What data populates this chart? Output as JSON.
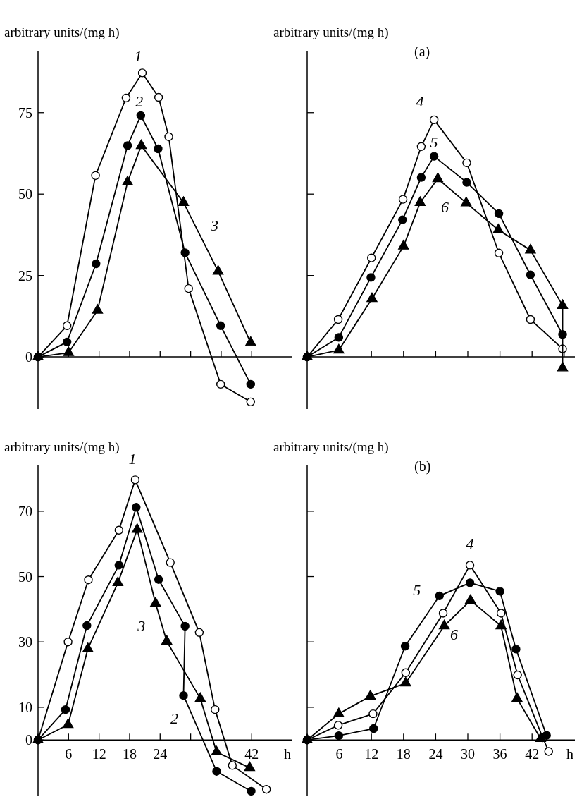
{
  "chart_data": [
    {
      "type": "line",
      "ylabel": "arbitrary units/(mg h)",
      "xlim": [
        0,
        50
      ],
      "ylim": [
        -16,
        94
      ],
      "xticks": [
        {
          "value": 6,
          "label": null
        },
        {
          "value": 12,
          "label": null
        },
        {
          "value": 18,
          "label": null
        },
        {
          "value": 24,
          "label": null
        },
        {
          "value": 30,
          "label": null
        },
        {
          "value": 36,
          "label": null
        },
        {
          "value": 42,
          "label": null
        }
      ],
      "yticks": [
        0,
        25,
        50,
        75
      ],
      "tick_labels": "y",
      "series": [
        {
          "name": "1",
          "color": "#000000",
          "marker": "circle",
          "colors": [
            "#ffffff",
            "#ffffff",
            "#ffffff",
            "#ffffff",
            "#ffffff",
            "#ffffff",
            "#ffffff",
            "#ffffff",
            "#ffffff",
            "#ffffff"
          ],
          "x": [
            0,
            5.7,
            11.3,
            17.3,
            20.5,
            23.7,
            25.7,
            29.6,
            35.9,
            41.8
          ],
          "values": [
            0,
            9.6,
            55.7,
            79.5,
            87.2,
            79.7,
            67.6,
            21,
            -8.4,
            -13.8
          ]
        },
        {
          "name": "2",
          "color": "#000000",
          "marker": "circle",
          "x": [
            0,
            5.7,
            11.4,
            17.6,
            20.2,
            23.6,
            28.9,
            35.9,
            41.8
          ],
          "values": [
            0,
            4.6,
            28.6,
            64.9,
            74.1,
            63.9,
            32,
            9.6,
            -8.4
          ]
        },
        {
          "name": "3",
          "color": "#000000",
          "marker": "triangle",
          "x": [
            0,
            6,
            11.7,
            17.6,
            20.3,
            28.6,
            35.4,
            41.8
          ],
          "values": [
            0,
            1.3,
            14.3,
            53.7,
            64.9,
            47.4,
            26.3,
            4.4
          ]
        }
      ]
    },
    {
      "type": "line",
      "ylabel": "arbitrary units/(mg h)",
      "xlim": [
        0,
        50
      ],
      "ylim": [
        -16,
        94
      ],
      "xticks": [
        {
          "value": 12,
          "label": null
        },
        {
          "value": 18,
          "label": null
        },
        {
          "value": 24,
          "label": null
        },
        {
          "value": 30,
          "label": null
        },
        {
          "value": 36,
          "label": null
        },
        {
          "value": 42,
          "label": null
        },
        {
          "value": 48,
          "label": null
        }
      ],
      "yticks": [
        {
          "value": 25,
          "label": null
        },
        {
          "value": 50,
          "label": null
        },
        {
          "value": 75,
          "label": null
        }
      ],
      "tick_labels": false,
      "series": [
        {
          "name": "4",
          "color": "#000000",
          "marker": "circle",
          "colors": [
            "#ffffff",
            "#ffffff",
            "#ffffff",
            "#ffffff",
            "#ffffff",
            "#ffffff",
            "#ffffff",
            "#ffffff",
            "#ffffff",
            "#ffffff"
          ],
          "x": [
            0,
            5.8,
            12,
            17.9,
            21.3,
            23.7,
            29.8,
            35.8,
            41.7,
            47.7
          ],
          "values": [
            0,
            11.5,
            30.4,
            48.4,
            64.6,
            72.8,
            59.6,
            31.9,
            11.5,
            2.5
          ]
        },
        {
          "name": "5",
          "color": "#000000",
          "marker": "circle",
          "x": [
            0,
            5.9,
            11.9,
            17.8,
            21.3,
            23.7,
            29.8,
            35.8,
            41.7,
            47.7
          ],
          "values": [
            0,
            6,
            24.4,
            42.1,
            55.1,
            61.6,
            53.6,
            44,
            25.2,
            6.9
          ]
        },
        {
          "name": "6",
          "color": "#000000",
          "marker": "triangle",
          "x": [
            0,
            5.9,
            12.1,
            18,
            21.1,
            24.4,
            29.7,
            35.7,
            41.7,
            47.7,
            47.7
          ],
          "values": [
            0,
            2.1,
            17.9,
            34,
            47.4,
            54.7,
            47.3,
            39,
            32.8,
            15.8,
            -3.4
          ]
        }
      ],
      "annotations": [
        "(a)"
      ]
    },
    {
      "type": "line",
      "ylabel": "arbitrary units/(mg h)",
      "xlabel": "h",
      "xlim": [
        0,
        50
      ],
      "ylim": [
        -17,
        84
      ],
      "xticks": [
        6,
        12,
        18,
        24,
        {
          "value": 30,
          "label": null
        },
        42
      ],
      "yticks": [
        0,
        10,
        30,
        50,
        70
      ],
      "series": [
        {
          "name": "1",
          "color": "#000000",
          "marker": "circle",
          "colors": [
            "#ffffff",
            "#ffffff",
            "#ffffff",
            "#ffffff",
            "#ffffff",
            "#ffffff",
            "#ffffff",
            "#ffffff",
            "#ffffff",
            "#ffffff"
          ],
          "x": [
            0,
            5.9,
            9.9,
            15.9,
            19.1,
            26,
            31.7,
            34.8,
            38.2,
            44.9
          ],
          "values": [
            0,
            30,
            49,
            64.2,
            79.6,
            54.3,
            32.9,
            9.3,
            -7.8,
            -15.1
          ]
        },
        {
          "name": "2",
          "color": "#000000",
          "marker": "circle",
          "x": [
            0,
            5.4,
            9.6,
            15.9,
            19.3,
            23.7,
            28.9,
            28.6,
            35.1,
            41.9
          ],
          "values": [
            0,
            9.3,
            35,
            53.5,
            71.2,
            49.1,
            34.8,
            13.6,
            -9.6,
            -15.7
          ]
        },
        {
          "name": "3",
          "color": "#000000",
          "marker": "triangle",
          "x": [
            0,
            5.9,
            9.8,
            15.7,
            19.5,
            23.1,
            25.3,
            31.9,
            35.1,
            41.6
          ],
          "values": [
            0,
            4.7,
            27.9,
            48.1,
            64.4,
            41.8,
            30.2,
            12.7,
            -3.7,
            -8.5
          ]
        }
      ]
    },
    {
      "type": "line",
      "ylabel": "arbitrary units/(mg h)",
      "xlabel": "h",
      "xlim": [
        0,
        50
      ],
      "ylim": [
        -17,
        84
      ],
      "xticks": [
        6,
        12,
        18,
        24,
        30,
        36,
        42
      ],
      "yticks": [
        {
          "value": 10,
          "label": null
        },
        {
          "value": 30,
          "label": null
        },
        {
          "value": 50,
          "label": null
        },
        {
          "value": 70,
          "label": null
        }
      ],
      "tick_labels": "x",
      "series": [
        {
          "name": "4",
          "color": "#000000",
          "marker": "circle",
          "colors": [
            "#ffffff",
            "#ffffff",
            "#ffffff",
            "#ffffff",
            "#ffffff",
            "#ffffff",
            "#ffffff",
            "#ffffff",
            "#ffffff",
            "#ffffff"
          ],
          "x": [
            0,
            5.8,
            12.3,
            18.4,
            25.4,
            30.4,
            36.2,
            39.3,
            44,
            45.1
          ],
          "values": [
            0,
            4.5,
            8,
            20.6,
            38.8,
            53.5,
            38.8,
            19.9,
            0.7,
            -3.5
          ]
        },
        {
          "name": "5",
          "color": "#000000",
          "marker": "circle",
          "x": [
            0,
            5.9,
            12.4,
            18.3,
            24.7,
            30.4,
            36,
            39,
            44.7
          ],
          "values": [
            0,
            1.3,
            3.5,
            28.7,
            44.1,
            48.1,
            45.5,
            27.8,
            1.4
          ]
        },
        {
          "name": "6",
          "color": "#000000",
          "marker": "triangle",
          "x": [
            0,
            5.9,
            11.8,
            18.4,
            25.6,
            30.5,
            36.2,
            39.2,
            43.6
          ],
          "values": [
            0,
            8,
            13.4,
            17.4,
            34.9,
            42.7,
            34.9,
            12.7,
            0.4
          ]
        }
      ],
      "annotations": [
        "(b)"
      ]
    }
  ]
}
